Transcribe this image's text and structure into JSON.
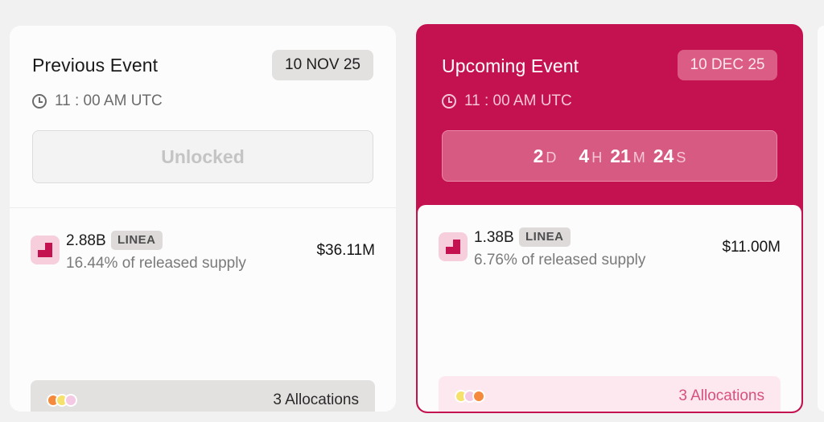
{
  "previous": {
    "title": "Previous Event",
    "date": "10 NOV 25",
    "time": "11 : 00 AM UTC",
    "status": "Unlocked",
    "token": {
      "amount": "2.88B",
      "symbol": "LINEA",
      "share": "16.44% of released supply",
      "value": "$36.11M"
    },
    "allocations": {
      "label": "3 Allocations",
      "dot_colors": [
        "#f58a3c",
        "#f5e16b",
        "#f3c9e4"
      ]
    }
  },
  "upcoming": {
    "title": "Upcoming Event",
    "date": "10 DEC 25",
    "time": "11 : 00 AM UTC",
    "countdown": [
      {
        "value": "2",
        "unit": "D"
      },
      {
        "value": "4",
        "unit": "H"
      },
      {
        "value": "21",
        "unit": "M"
      },
      {
        "value": "24",
        "unit": "S"
      }
    ],
    "token": {
      "amount": "1.38B",
      "symbol": "LINEA",
      "share": "6.76% of released supply",
      "value": "$11.00M"
    },
    "allocations": {
      "label": "3 Allocations",
      "dot_colors": [
        "#f5e16b",
        "#f3c9e4",
        "#f58a3c"
      ]
    }
  },
  "icons": {
    "clock": "clock-icon",
    "token_logo": "linea-logo-icon"
  },
  "colors": {
    "accent": "#c4114f",
    "accent_soft": "#d75a82",
    "alloc_accent": "#d8507c"
  }
}
